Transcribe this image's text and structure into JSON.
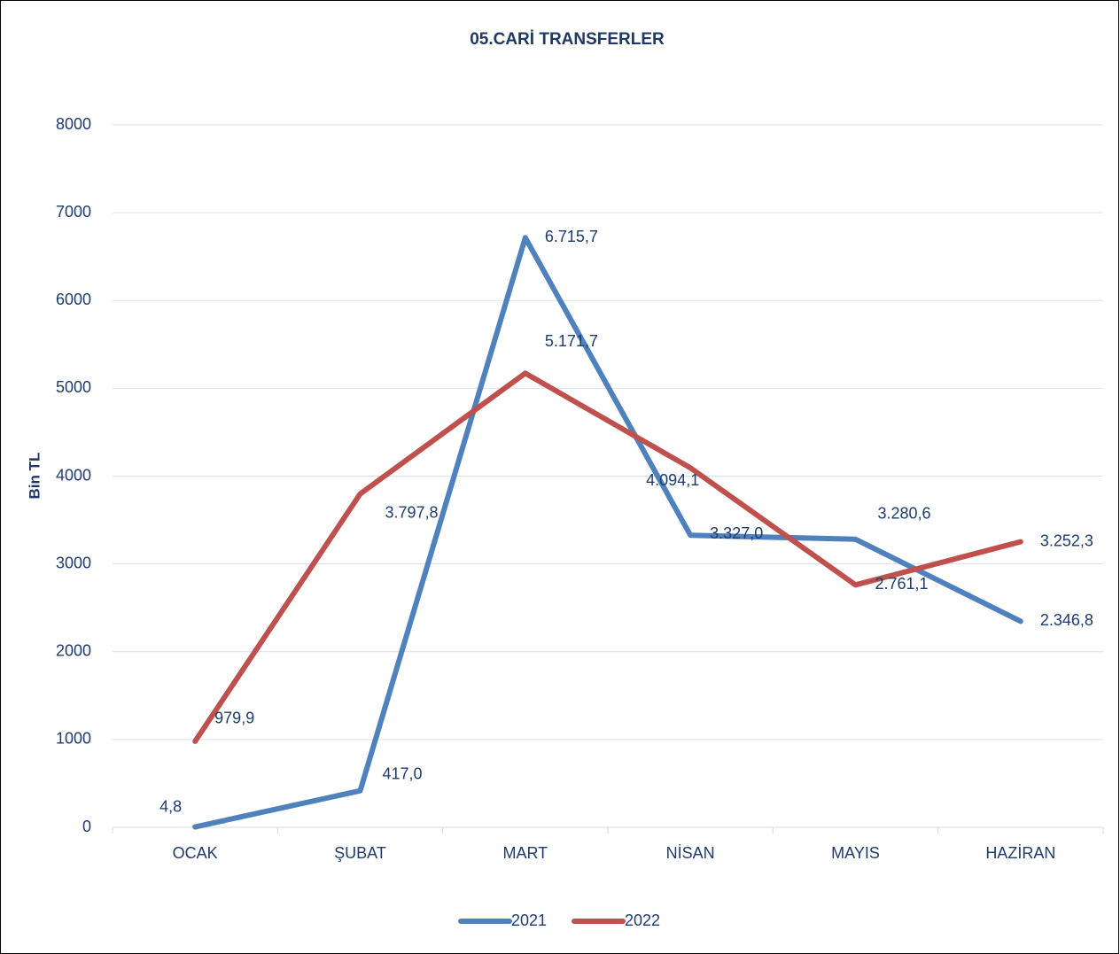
{
  "chart_data": {
    "type": "line",
    "title": "05.CARİ TRANSFERLER",
    "y_label": "Bin TL",
    "categories": [
      "OCAK",
      "ŞUBAT",
      "MART",
      "NİSAN",
      "MAYIS",
      "HAZİRAN"
    ],
    "series": [
      {
        "name": "2021",
        "color": "#4f81bd",
        "values": [
          4.8,
          417.0,
          6715.7,
          3327.0,
          3280.6,
          2346.8
        ],
        "value_labels": [
          "4,8",
          "417,0",
          "6.715,7",
          "3.327,0",
          "3.280,6",
          "2.346,8"
        ]
      },
      {
        "name": "2022",
        "color": "#c0504d",
        "values": [
          979.9,
          3797.8,
          5171.7,
          4094.1,
          2761.1,
          3252.3
        ],
        "value_labels": [
          "979,9",
          "3.797,8",
          "5.171,7",
          "4.094,1",
          "2.761,1",
          "3.252,3"
        ]
      }
    ],
    "ylim": [
      0,
      8000
    ],
    "yticks": [
      0,
      1000,
      2000,
      3000,
      4000,
      5000,
      6000,
      7000,
      8000
    ],
    "grid": true,
    "legend": "bottom"
  }
}
